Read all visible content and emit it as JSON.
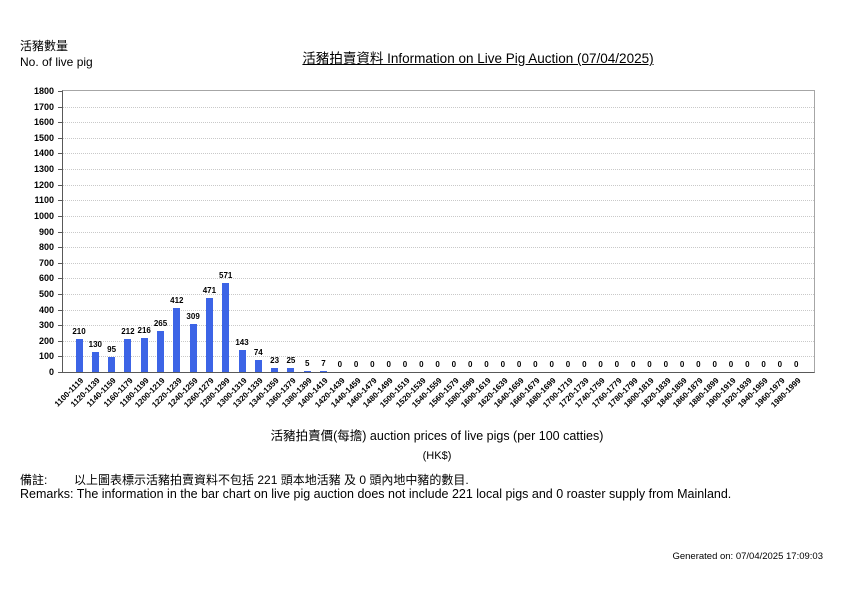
{
  "header": {
    "y_axis_label_zh": "活豬數量",
    "y_axis_label_en": "No. of live pig",
    "title": "活豬拍賣資料 Information on Live Pig Auction (07/04/2025)"
  },
  "footer": {
    "remarks_zh": "備註:        以上圖表標示活豬拍賣資料不包括 221 頭本地活豬 及 0 頭內地中豬的數目.",
    "remarks_en": "Remarks: The information in the bar chart on live pig auction does not include 221 local pigs and 0 roaster supply from Mainland.",
    "generated_on": "Generated on: 07/04/2025 17:09:03"
  },
  "chart_data": {
    "type": "bar",
    "title": "活豬拍賣資料 Information on Live Pig Auction (07/04/2025)",
    "xlabel": "活豬拍賣價(每擔) auction prices of live pigs (per 100 catties)",
    "xlabel_unit": "(HK$)",
    "ylabel": "活豬數量 No. of live pig",
    "categories": [
      "1100-1119",
      "1120-1139",
      "1140-1159",
      "1160-1179",
      "1180-1199",
      "1200-1219",
      "1220-1239",
      "1240-1259",
      "1260-1279",
      "1280-1299",
      "1300-1319",
      "1320-1339",
      "1340-1359",
      "1360-1379",
      "1380-1399",
      "1400-1419",
      "1420-1439",
      "1440-1459",
      "1460-1479",
      "1480-1499",
      "1500-1519",
      "1520-1539",
      "1540-1559",
      "1560-1579",
      "1580-1599",
      "1600-1619",
      "1620-1639",
      "1640-1659",
      "1660-1679",
      "1680-1699",
      "1700-1719",
      "1720-1739",
      "1740-1759",
      "1760-1779",
      "1780-1799",
      "1800-1819",
      "1820-1839",
      "1840-1859",
      "1860-1879",
      "1880-1899",
      "1900-1919",
      "1920-1939",
      "1940-1959",
      "1960-1979",
      "1980-1999"
    ],
    "values": [
      210,
      130,
      95,
      212,
      216,
      265,
      412,
      309,
      471,
      571,
      143,
      74,
      23,
      25,
      5,
      7,
      0,
      0,
      0,
      0,
      0,
      0,
      0,
      0,
      0,
      0,
      0,
      0,
      0,
      0,
      0,
      0,
      0,
      0,
      0,
      0,
      0,
      0,
      0,
      0,
      0,
      0,
      0,
      0,
      0
    ],
    "ylim": [
      0,
      1800
    ],
    "ytick_step": 100,
    "grid": true,
    "legend": false,
    "bar_color": "#3C64E6"
  }
}
